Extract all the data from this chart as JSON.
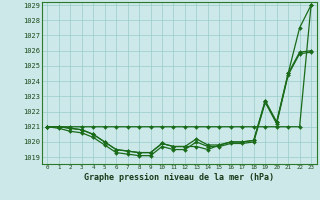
{
  "title": "Graphe pression niveau de la mer (hPa)",
  "xlabel_hours": [
    0,
    1,
    2,
    3,
    4,
    5,
    6,
    7,
    8,
    9,
    10,
    11,
    12,
    13,
    14,
    15,
    16,
    17,
    18,
    19,
    20,
    21,
    22,
    23
  ],
  "line1": [
    1021.0,
    1021.0,
    1021.0,
    1021.0,
    1021.0,
    1021.0,
    1021.0,
    1021.0,
    1021.0,
    1021.0,
    1021.0,
    1021.0,
    1021.0,
    1021.0,
    1021.0,
    1021.0,
    1021.0,
    1021.0,
    1021.0,
    1021.0,
    1021.0,
    1021.0,
    1021.0,
    1029.0
  ],
  "line2": [
    1021.0,
    1021.0,
    1020.9,
    1020.8,
    1020.5,
    1020.0,
    1019.5,
    1019.4,
    1019.3,
    1019.3,
    1019.9,
    1019.7,
    1019.7,
    1019.7,
    1019.5,
    1019.8,
    1020.0,
    1020.0,
    1020.1,
    1022.7,
    1021.3,
    1024.5,
    1027.5,
    1029.0
  ],
  "line3": [
    1021.0,
    1021.0,
    1020.9,
    1020.8,
    1020.5,
    1020.0,
    1019.5,
    1019.4,
    1019.3,
    1019.3,
    1019.9,
    1019.7,
    1019.7,
    1020.2,
    1019.8,
    1019.8,
    1020.0,
    1020.0,
    1020.1,
    1022.7,
    1021.3,
    1024.5,
    1025.9,
    1026.0
  ],
  "line4": [
    1021.0,
    1020.9,
    1020.7,
    1020.6,
    1020.3,
    1019.8,
    1019.3,
    1019.2,
    1019.1,
    1019.1,
    1019.7,
    1019.5,
    1019.5,
    1020.0,
    1019.7,
    1019.7,
    1019.9,
    1019.9,
    1020.0,
    1022.6,
    1021.2,
    1024.4,
    1025.8,
    1025.9
  ],
  "bg_color": "#cce8e8",
  "grid_color": "#99cccc",
  "line_color": "#1a6b1a",
  "marker_color": "#1a6b1a",
  "ylim_min": 1019,
  "ylim_max": 1029,
  "yticks": [
    1019,
    1020,
    1021,
    1022,
    1023,
    1024,
    1025,
    1026,
    1027,
    1028,
    1029
  ],
  "title_fontsize": 6.0,
  "tick_fontsize": 5.0,
  "xtick_fontsize": 4.2
}
